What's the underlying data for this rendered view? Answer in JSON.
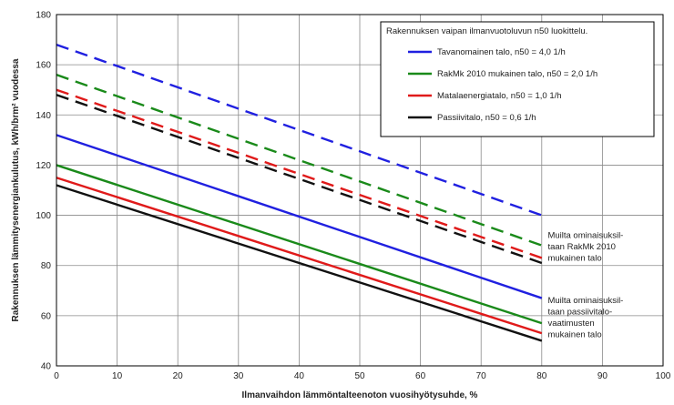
{
  "chart_data": {
    "type": "line",
    "xlabel": "Ilmanvaihdon lämmöntalteenoton vuosihyötysuhde, %",
    "ylabel": "Rakennuksen lämmitysenergiankulutus, kWh/brm² vuodessa",
    "xlim": [
      0,
      100
    ],
    "ylim": [
      40,
      180
    ],
    "xticks": [
      0,
      10,
      20,
      30,
      40,
      50,
      60,
      70,
      80,
      90,
      100
    ],
    "yticks": [
      40,
      60,
      80,
      100,
      120,
      140,
      160,
      180
    ],
    "grid": true,
    "legend": {
      "title": "Rakennuksen vaipan ilmanvuotoluvun n50 luokittelu.",
      "placement": "top-right"
    },
    "series": [
      {
        "name": "Tavanomainen talo, n50 = 4,0 1/h",
        "color": "#2020e0",
        "group": "dashed",
        "x": [
          0,
          80
        ],
        "y": [
          168,
          100
        ]
      },
      {
        "name": "RakMk 2010 mukainen talo, n50 = 2,0 1/h",
        "color": "#1a8a1a",
        "group": "dashed",
        "x": [
          0,
          80
        ],
        "y": [
          156,
          88
        ]
      },
      {
        "name": "Matalaenergiatalo, n50 = 1,0 1/h",
        "color": "#e01a1a",
        "group": "dashed",
        "x": [
          0,
          80
        ],
        "y": [
          150,
          83
        ]
      },
      {
        "name": "Passiivitalo, n50 = 0,6 1/h",
        "color": "#111111",
        "group": "dashed",
        "x": [
          0,
          80
        ],
        "y": [
          148,
          81
        ]
      },
      {
        "name": "Tavanomainen talo, n50 = 4,0 1/h",
        "color": "#2020e0",
        "group": "solid",
        "x": [
          0,
          80
        ],
        "y": [
          132,
          67
        ]
      },
      {
        "name": "RakMk 2010 mukainen talo, n50 = 2,0 1/h",
        "color": "#1a8a1a",
        "group": "solid",
        "x": [
          0,
          80
        ],
        "y": [
          120,
          57
        ]
      },
      {
        "name": "Matalaenergiatalo, n50 = 1,0 1/h",
        "color": "#e01a1a",
        "group": "solid",
        "x": [
          0,
          80
        ],
        "y": [
          115,
          53
        ]
      },
      {
        "name": "Passiivitalo, n50 = 0,6 1/h",
        "color": "#111111",
        "group": "solid",
        "x": [
          0,
          80
        ],
        "y": [
          112,
          50
        ]
      }
    ],
    "annotations": [
      {
        "lines": [
          "Muilta ominaisuksil-",
          "taan RakMk 2010",
          "mukainen talo"
        ],
        "x": 81,
        "y": 91
      },
      {
        "lines": [
          "Muilta ominaisuksil-",
          "taan passiivitalo-",
          "vaatimusten",
          "mukainen talo"
        ],
        "x": 81,
        "y": 65
      }
    ]
  }
}
